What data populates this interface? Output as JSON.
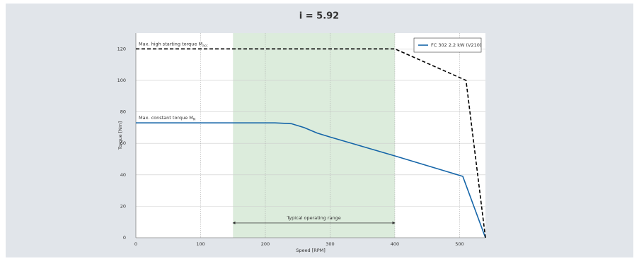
{
  "chart_data": {
    "type": "line",
    "title": "i = 5.92",
    "xlabel": "Speed [RPM]",
    "ylabel": "Torque [Nm]",
    "xlim": [
      0,
      540
    ],
    "xticks": [
      0,
      100,
      200,
      300,
      400,
      500
    ],
    "ylim": [
      0,
      130
    ],
    "yticks": [
      0,
      20,
      40,
      60,
      80,
      100,
      120
    ],
    "grid": true,
    "legend": "upper right",
    "operating_range": {
      "label": "Typical operating range",
      "from": 150,
      "to": 400,
      "color": "#dcecdc"
    },
    "series": [
      {
        "name": "FC 302 2.2 kW (V210)",
        "color": "#1565a8",
        "dashed": false,
        "label": "Max. constant torque M",
        "label_sub": "N",
        "x": [
          0,
          215,
          240,
          260,
          280,
          300,
          350,
          400,
          505,
          540
        ],
        "values": [
          73,
          73,
          72.5,
          70,
          66.5,
          64,
          58,
          52,
          39,
          0
        ]
      },
      {
        "color": "#000000",
        "dashed": true,
        "label": "Max. high starting torque M",
        "label_sub": "acc",
        "x": [
          0,
          400,
          510,
          540
        ],
        "values": [
          120,
          120,
          100,
          0
        ]
      }
    ]
  }
}
